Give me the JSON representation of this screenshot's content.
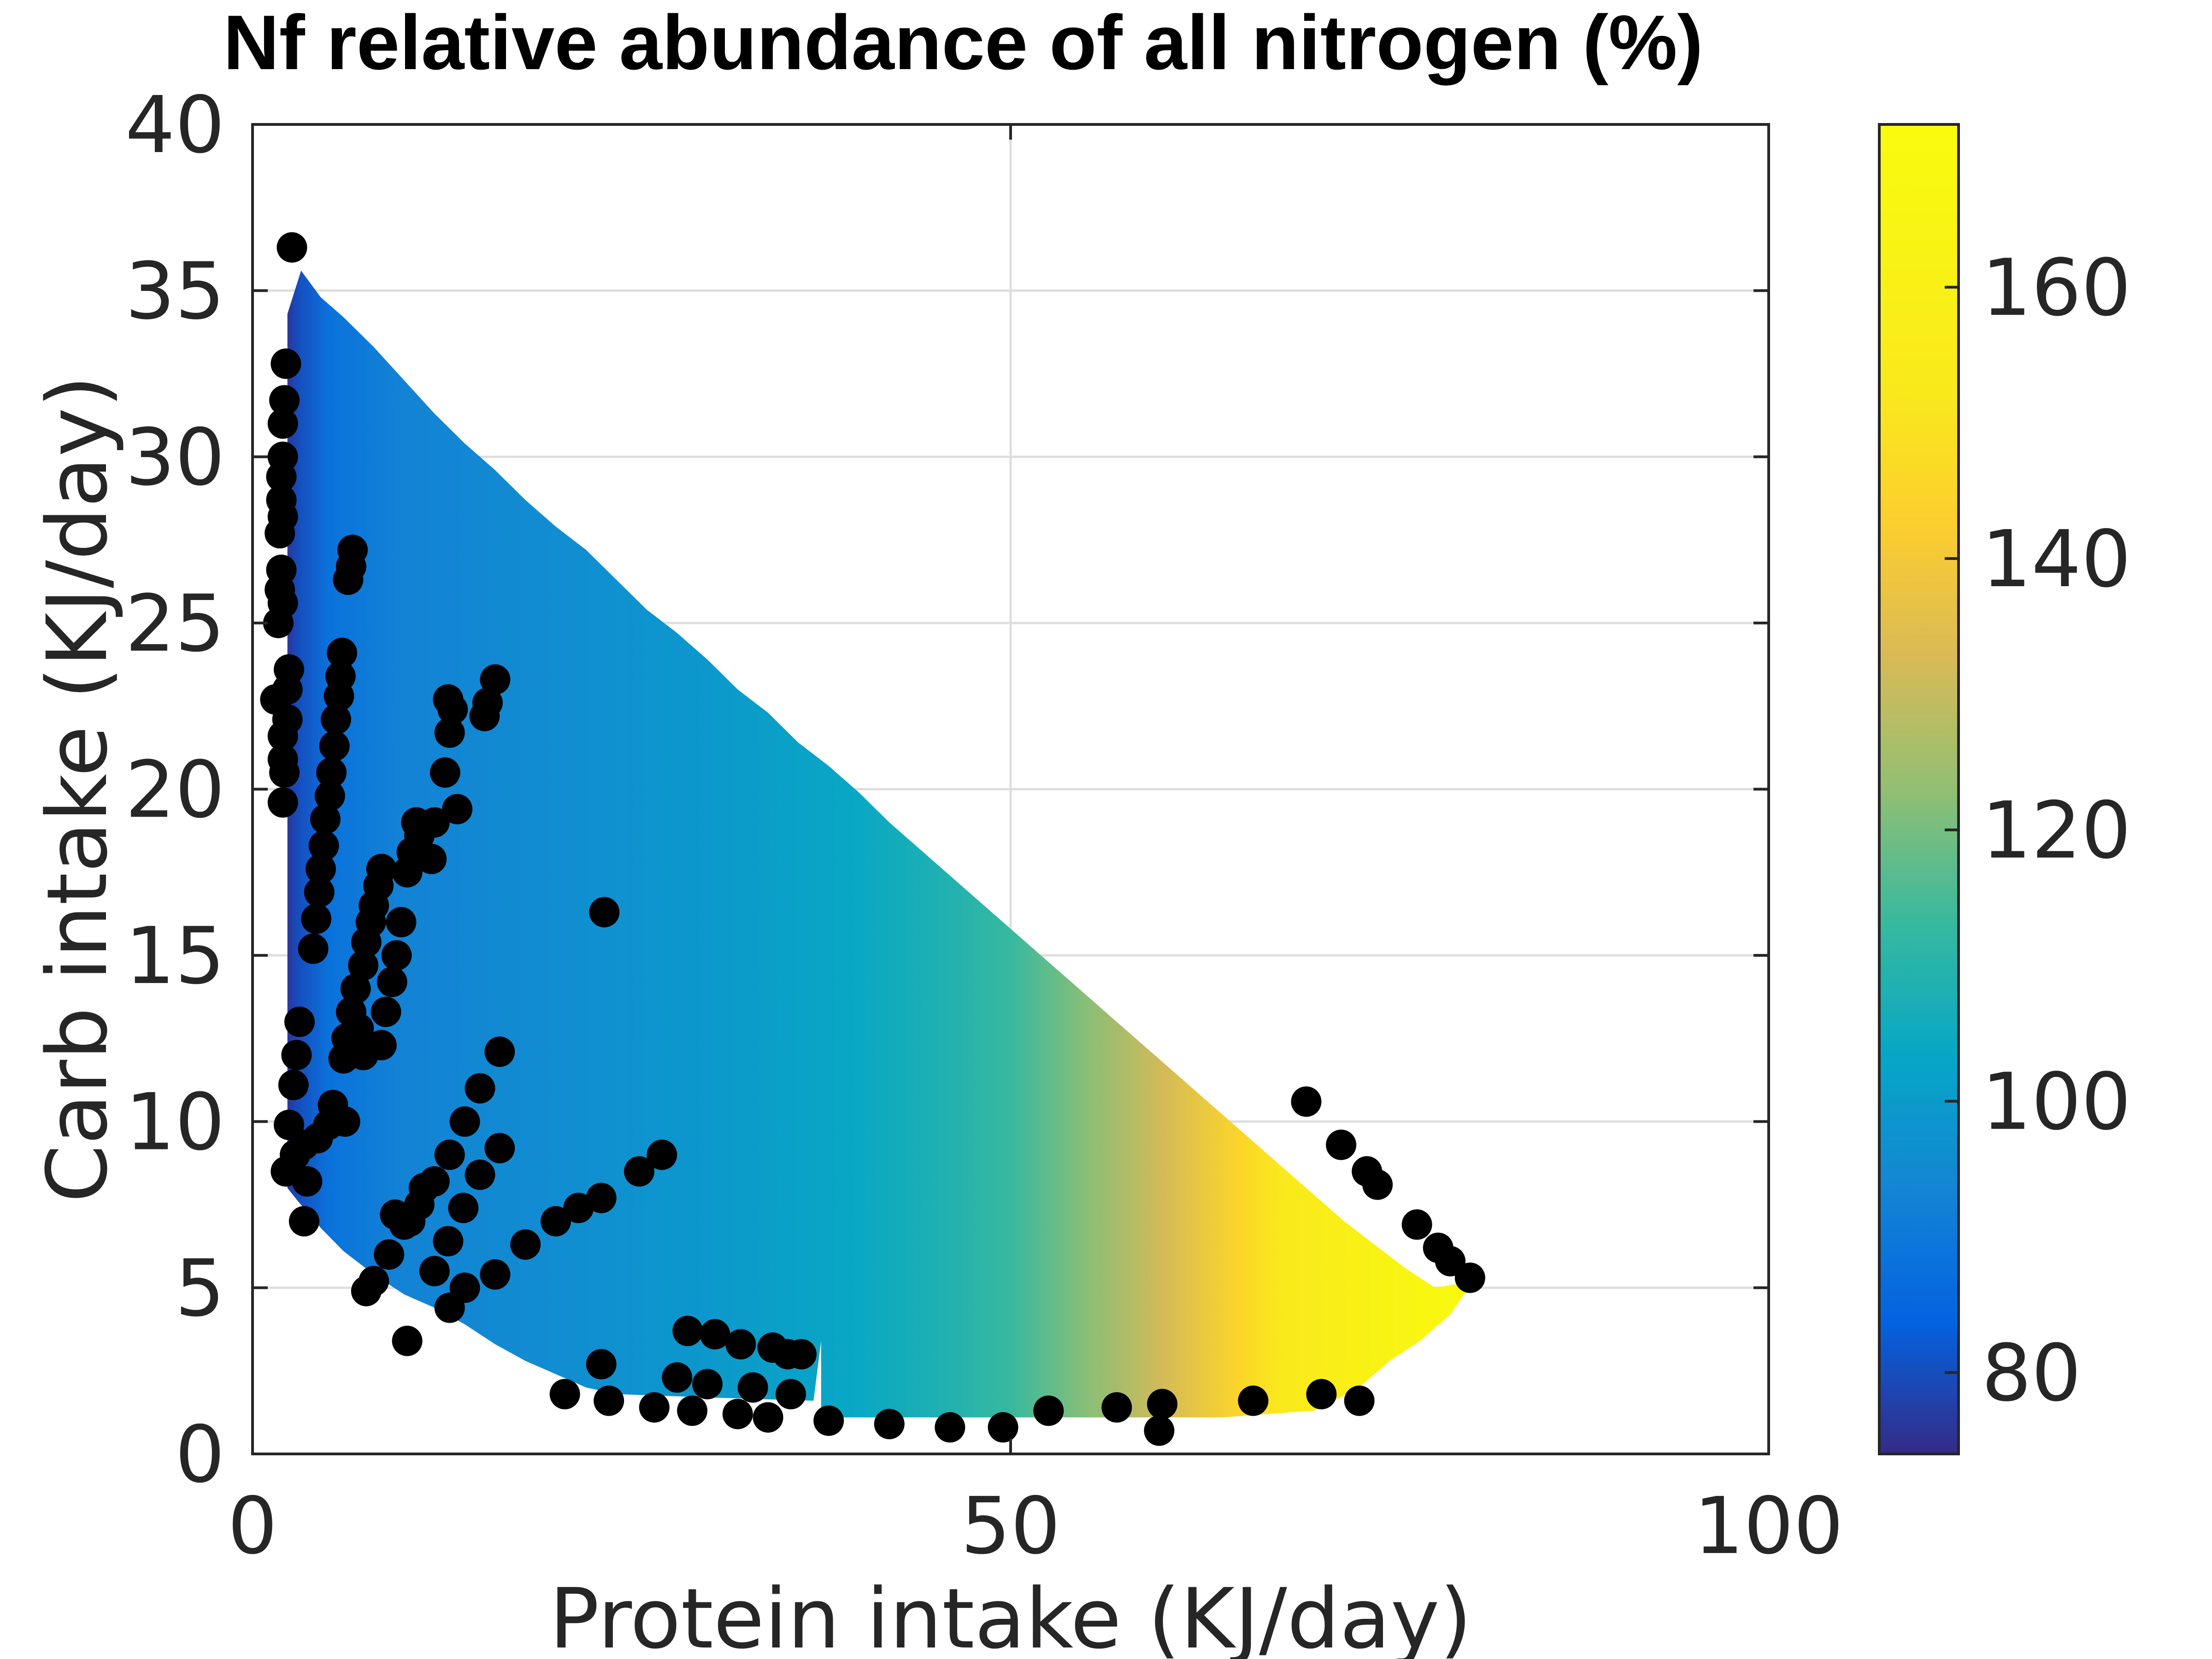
{
  "chart_data": {
    "type": "heatmap",
    "title": "Nf relative abundance of all nitrogen (%)",
    "xlabel": "Protein intake (KJ/day)",
    "ylabel": "Carb intake (KJ/day)",
    "xlim": [
      0,
      100
    ],
    "ylim": [
      0,
      40
    ],
    "xticks": [
      0,
      50,
      100
    ],
    "yticks": [
      0,
      5,
      10,
      15,
      20,
      25,
      30,
      35,
      40
    ],
    "grid": true,
    "colormap": "parula",
    "colorbar": {
      "ticks": [
        80,
        100,
        120,
        140,
        160
      ],
      "range": [
        74,
        172
      ]
    },
    "surface": {
      "description_of_extent": "filled region between lower and upper boundaries in data units",
      "x_min": 2.3,
      "x_max": 80.5,
      "upper_boundary": [
        [
          2.3,
          34.3
        ],
        [
          3.2,
          35.6
        ],
        [
          4.5,
          34.8
        ],
        [
          6,
          34.2
        ],
        [
          8,
          33.3
        ],
        [
          10,
          32.3
        ],
        [
          12,
          31.3
        ],
        [
          14,
          30.4
        ],
        [
          16,
          29.6
        ],
        [
          18,
          28.7
        ],
        [
          20,
          27.9
        ],
        [
          22,
          27.2
        ],
        [
          24,
          26.3
        ],
        [
          26,
          25.4
        ],
        [
          28,
          24.7
        ],
        [
          30,
          23.9
        ],
        [
          32,
          23.0
        ],
        [
          34,
          22.3
        ],
        [
          36,
          21.4
        ],
        [
          38,
          20.7
        ],
        [
          40,
          19.9
        ],
        [
          42,
          19.0
        ],
        [
          44,
          18.2
        ],
        [
          46,
          17.4
        ],
        [
          48,
          16.6
        ],
        [
          50,
          15.8
        ],
        [
          52,
          15.0
        ],
        [
          54,
          14.2
        ],
        [
          56,
          13.4
        ],
        [
          58,
          12.6
        ],
        [
          60,
          11.8
        ],
        [
          62,
          11.0
        ],
        [
          64,
          10.2
        ],
        [
          66,
          9.4
        ],
        [
          68,
          8.6
        ],
        [
          70,
          7.8
        ],
        [
          72,
          7.0
        ],
        [
          74,
          6.3
        ],
        [
          76,
          5.6
        ],
        [
          78,
          5.0
        ],
        [
          80.5,
          5.2
        ]
      ],
      "lower_boundary": [
        [
          2.3,
          14.8
        ],
        [
          2.3,
          8.0
        ],
        [
          3,
          7.6
        ],
        [
          4.5,
          6.8
        ],
        [
          6,
          6.1
        ],
        [
          8,
          5.4
        ],
        [
          10,
          4.8
        ],
        [
          12,
          4.4
        ],
        [
          14,
          3.9
        ],
        [
          16,
          3.3
        ],
        [
          18,
          2.8
        ],
        [
          20,
          2.4
        ],
        [
          22,
          2.0
        ],
        [
          24,
          1.8
        ],
        [
          30,
          1.7
        ],
        [
          37,
          1.6
        ],
        [
          37.5,
          3.4
        ],
        [
          37.5,
          1.1
        ],
        [
          46,
          1.1
        ],
        [
          56,
          1.1
        ],
        [
          64,
          1.1
        ],
        [
          70,
          1.3
        ],
        [
          73,
          2.0
        ],
        [
          75,
          2.8
        ],
        [
          77,
          3.4
        ],
        [
          79,
          4.2
        ],
        [
          80.5,
          5.2
        ]
      ],
      "value_by_x": [
        [
          2.3,
          76
        ],
        [
          3,
          80
        ],
        [
          5,
          88
        ],
        [
          10,
          93
        ],
        [
          20,
          96
        ],
        [
          30,
          99
        ],
        [
          40,
          104
        ],
        [
          45,
          108
        ],
        [
          50,
          113
        ],
        [
          55,
          122
        ],
        [
          60,
          132
        ],
        [
          65,
          145
        ],
        [
          68,
          153
        ],
        [
          71,
          158
        ],
        [
          75,
          163
        ],
        [
          78,
          168
        ],
        [
          80.5,
          171
        ]
      ]
    },
    "points": [
      [
        2.6,
        36.3
      ],
      [
        2.2,
        32.8
      ],
      [
        2.1,
        31.7
      ],
      [
        2.0,
        31.0
      ],
      [
        2.0,
        30.0
      ],
      [
        1.9,
        29.4
      ],
      [
        1.9,
        28.7
      ],
      [
        2.0,
        28.2
      ],
      [
        1.8,
        27.7
      ],
      [
        1.9,
        26.6
      ],
      [
        1.8,
        26.0
      ],
      [
        2.0,
        25.6
      ],
      [
        1.7,
        25.0
      ],
      [
        2.4,
        23.6
      ],
      [
        2.3,
        23.0
      ],
      [
        1.5,
        22.7
      ],
      [
        2.3,
        22.1
      ],
      [
        2.0,
        21.6
      ],
      [
        2.0,
        20.9
      ],
      [
        2.1,
        20.5
      ],
      [
        2.0,
        19.6
      ],
      [
        6.6,
        27.2
      ],
      [
        6.5,
        26.7
      ],
      [
        6.3,
        26.3
      ],
      [
        5.9,
        24.1
      ],
      [
        5.8,
        23.4
      ],
      [
        5.7,
        22.8
      ],
      [
        5.5,
        22.1
      ],
      [
        5.4,
        21.3
      ],
      [
        5.2,
        20.5
      ],
      [
        5.1,
        19.8
      ],
      [
        4.8,
        19.1
      ],
      [
        4.7,
        18.3
      ],
      [
        4.5,
        17.6
      ],
      [
        4.4,
        16.9
      ],
      [
        4.2,
        16.1
      ],
      [
        4.0,
        15.2
      ],
      [
        3.1,
        13.0
      ],
      [
        2.9,
        12.0
      ],
      [
        2.7,
        11.1
      ],
      [
        2.4,
        9.9
      ],
      [
        3.4,
        9.3
      ],
      [
        2.8,
        9.0
      ],
      [
        2.2,
        8.5
      ],
      [
        3.6,
        8.2
      ],
      [
        4.3,
        9.5
      ],
      [
        5.0,
        9.9
      ],
      [
        5.3,
        10.5
      ],
      [
        6.1,
        10.0
      ],
      [
        3.4,
        7.0
      ],
      [
        8.5,
        17.6
      ],
      [
        8.3,
        17.1
      ],
      [
        8.0,
        16.5
      ],
      [
        7.8,
        16.0
      ],
      [
        7.5,
        15.4
      ],
      [
        7.3,
        14.7
      ],
      [
        6.8,
        14.0
      ],
      [
        6.5,
        13.3
      ],
      [
        6.2,
        12.5
      ],
      [
        6.0,
        11.9
      ],
      [
        7.0,
        12.8
      ],
      [
        7.3,
        12.0
      ],
      [
        10.8,
        19.0
      ],
      [
        11.0,
        18.6
      ],
      [
        10.5,
        18.1
      ],
      [
        11.8,
        17.9
      ],
      [
        10.2,
        17.5
      ],
      [
        9.8,
        16.0
      ],
      [
        9.5,
        15.0
      ],
      [
        9.2,
        14.2
      ],
      [
        8.8,
        13.3
      ],
      [
        8.5,
        12.3
      ],
      [
        12.9,
        22.7
      ],
      [
        13.2,
        22.4
      ],
      [
        16.0,
        23.3
      ],
      [
        15.5,
        22.6
      ],
      [
        15.3,
        22.2
      ],
      [
        13.0,
        21.7
      ],
      [
        12.7,
        20.5
      ],
      [
        13.5,
        19.4
      ],
      [
        12.0,
        19.0
      ],
      [
        16.3,
        12.1
      ],
      [
        15.0,
        11.0
      ],
      [
        14.0,
        10.0
      ],
      [
        13.0,
        9.0
      ],
      [
        12.0,
        8.2
      ],
      [
        11.0,
        7.5
      ],
      [
        10.0,
        6.9
      ],
      [
        9.0,
        6.0
      ],
      [
        8.0,
        5.2
      ],
      [
        7.5,
        4.9
      ],
      [
        9.4,
        7.2
      ],
      [
        10.4,
        7.0
      ],
      [
        11.3,
        8.0
      ],
      [
        16.3,
        9.2
      ],
      [
        15.0,
        8.4
      ],
      [
        13.9,
        7.4
      ],
      [
        12.9,
        6.4
      ],
      [
        12.0,
        5.5
      ],
      [
        13.0,
        4.4
      ],
      [
        14.0,
        5.0
      ],
      [
        16.0,
        5.4
      ],
      [
        18.0,
        6.3
      ],
      [
        20.0,
        7.0
      ],
      [
        21.5,
        7.4
      ],
      [
        23.0,
        7.7
      ],
      [
        25.5,
        8.5
      ],
      [
        27.0,
        9.0
      ],
      [
        23.2,
        16.3
      ],
      [
        10.2,
        3.4
      ],
      [
        28.7,
        3.7
      ],
      [
        30.5,
        3.6
      ],
      [
        32.2,
        3.3
      ],
      [
        34.3,
        3.2
      ],
      [
        35.3,
        3.0
      ],
      [
        36.2,
        3.0
      ],
      [
        23.0,
        2.7
      ],
      [
        28.0,
        2.3
      ],
      [
        30.0,
        2.1
      ],
      [
        33.0,
        2.0
      ],
      [
        35.5,
        1.8
      ],
      [
        20.6,
        1.8
      ],
      [
        23.5,
        1.6
      ],
      [
        26.5,
        1.4
      ],
      [
        29.0,
        1.3
      ],
      [
        32.0,
        1.2
      ],
      [
        34.0,
        1.1
      ],
      [
        38.0,
        1.0
      ],
      [
        42.0,
        0.9
      ],
      [
        46.0,
        0.8
      ],
      [
        49.5,
        0.8
      ],
      [
        52.5,
        1.3
      ],
      [
        57.0,
        1.4
      ],
      [
        60.0,
        1.5
      ],
      [
        59.8,
        0.7
      ],
      [
        66.0,
        1.6
      ],
      [
        70.5,
        1.8
      ],
      [
        73.0,
        1.6
      ],
      [
        69.5,
        10.6
      ],
      [
        71.8,
        9.3
      ],
      [
        73.5,
        8.5
      ],
      [
        74.2,
        8.1
      ],
      [
        76.8,
        6.9
      ],
      [
        78.2,
        6.2
      ],
      [
        79.0,
        5.8
      ],
      [
        80.3,
        5.3
      ]
    ]
  }
}
